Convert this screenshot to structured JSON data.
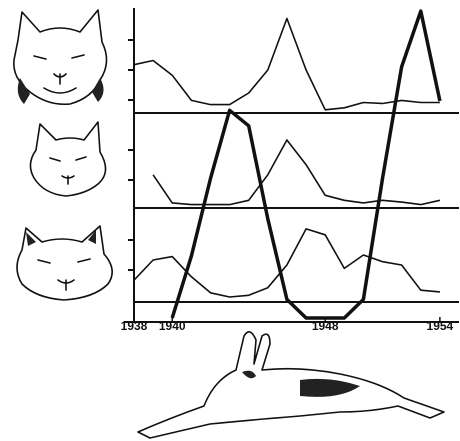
{
  "chart_data": {
    "type": "line",
    "x": [
      1938,
      1939,
      1940,
      1941,
      1942,
      1943,
      1944,
      1945,
      1946,
      1947,
      1948,
      1949,
      1950,
      1951,
      1952,
      1953,
      1954
    ],
    "series": [
      {
        "color": "#111111",
        "values": [
          46,
          50,
          36,
          12,
          8,
          8,
          19,
          41,
          90,
          41,
          3,
          5,
          10,
          9,
          12,
          10,
          10
        ]
      },
      {
        "color": "#111111",
        "values": [
          null,
          39,
          6,
          4,
          4,
          4,
          9,
          39,
          80,
          51,
          15,
          9,
          6,
          9,
          7,
          4,
          9
        ]
      },
      {
        "color": "#111111",
        "values": [
          26,
          50,
          54,
          30,
          11,
          6,
          8,
          17,
          44,
          87,
          80,
          40,
          56,
          48,
          44,
          14,
          12
        ]
      },
      {
        "color": "#111111",
        "values": [
          null,
          null,
          0,
          20,
          45,
          67,
          62,
          32,
          6,
          0,
          0,
          0,
          6,
          45,
          81,
          99,
          70
        ]
      }
    ],
    "xlim": [
      1938,
      1955
    ],
    "xticks": [
      1938,
      1940,
      1948,
      1954
    ],
    "ylim": [
      0,
      100
    ]
  }
}
